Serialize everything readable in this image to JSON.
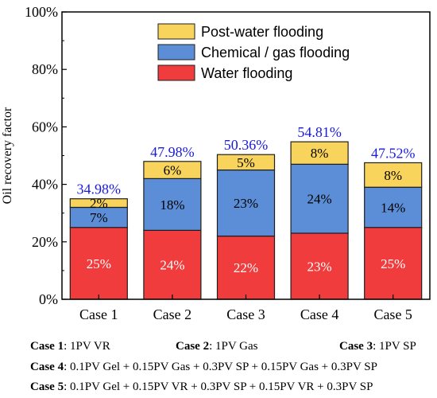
{
  "chart_data": {
    "type": "bar",
    "stacked": true,
    "categories": [
      "Case 1",
      "Case 2",
      "Case 3",
      "Case 4",
      "Case 5"
    ],
    "series": [
      {
        "name": "Water flooding",
        "color": "#f03c3c",
        "values": [
          25,
          24,
          22,
          23,
          25
        ],
        "labels": [
          "25%",
          "24%",
          "22%",
          "23%",
          "25%"
        ],
        "label_color": "#ffffff"
      },
      {
        "name": "Chemical / gas flooding",
        "color": "#5b8ed6",
        "values": [
          7,
          18,
          23,
          24,
          14
        ],
        "labels": [
          "7%",
          "18%",
          "23%",
          "24%",
          "14%"
        ],
        "label_color": "#000000"
      },
      {
        "name": "Post-water flooding",
        "color": "#f9d45c",
        "values": [
          2,
          6,
          5,
          8,
          8
        ],
        "labels": [
          "2%",
          "6%",
          "5%",
          "8%",
          "8%"
        ],
        "label_color": "#000000"
      }
    ],
    "stack_tops": [
      34.98,
      47.98,
      50.36,
      54.81,
      47.52
    ],
    "total_labels": [
      "34.98%",
      "47.98%",
      "50.36%",
      "54.81%",
      "47.52%"
    ],
    "total_label_color": "#1a1adb",
    "ylabel": "Oil recovery factor",
    "ylim": [
      0,
      100
    ],
    "yticks": [
      0,
      20,
      40,
      60,
      80,
      100
    ],
    "ytick_labels": [
      "0%",
      "20%",
      "40%",
      "60%",
      "80%",
      "100%"
    ],
    "legend_position": "top-center",
    "legend_order": [
      "Post-water flooding",
      "Chemical / gas flooding",
      "Water flooding"
    ],
    "grid": false
  },
  "case_notes": {
    "case1": {
      "label": "Case 1",
      "text": ": 1PV VR"
    },
    "case2": {
      "label": "Case 2",
      "text": ": 1PV Gas"
    },
    "case3": {
      "label": "Case 3",
      "text": ":  1PV SP"
    },
    "case4": {
      "label": "Case 4",
      "text": ": 0.1PV Gel + 0.15PV Gas + 0.3PV SP + 0.15PV Gas + 0.3PV SP"
    },
    "case5": {
      "label": "Case 5",
      "text": ": 0.1PV Gel + 0.15PV VR + 0.3PV SP + 0.15PV VR + 0.3PV SP"
    }
  }
}
